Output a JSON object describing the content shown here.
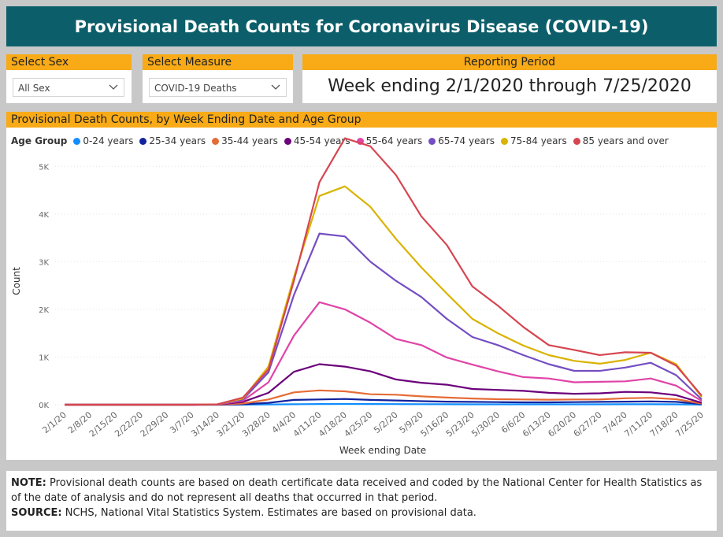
{
  "header": {
    "title": "Provisional Death Counts for Coronavirus Disease (COVID-19)"
  },
  "filters": {
    "sex": {
      "label": "Select Sex",
      "value": "All Sex"
    },
    "measure": {
      "label": "Select Measure",
      "value": "COVID-19 Deaths"
    },
    "period": {
      "label": "Reporting Period",
      "value": "Week ending 2/1/2020 through 7/25/2020"
    }
  },
  "chart": {
    "heading": "Provisional Death Counts, by Week Ending Date and Age Group",
    "legend_title": "Age Group"
  },
  "colors": {
    "accent": "#f8aa17",
    "title_bg": "#0c5f6a"
  },
  "chart_data": {
    "type": "line",
    "title": "Provisional Death Counts, by Week Ending Date and Age Group",
    "xlabel": "Week ending Date",
    "ylabel": "Count",
    "ylim": [
      0,
      5500
    ],
    "yticks": [
      0,
      1000,
      2000,
      3000,
      4000,
      5000
    ],
    "ytick_labels": [
      "0K",
      "1K",
      "2K",
      "3K",
      "4K",
      "5K"
    ],
    "grid": true,
    "legend_position": "top",
    "x": [
      "2/1/20",
      "2/8/20",
      "2/15/20",
      "2/22/20",
      "2/29/20",
      "3/7/20",
      "3/14/20",
      "3/21/20",
      "3/28/20",
      "4/4/20",
      "4/11/20",
      "4/18/20",
      "4/25/20",
      "5/2/20",
      "5/9/20",
      "5/16/20",
      "5/23/20",
      "5/30/20",
      "6/6/20",
      "6/13/20",
      "6/20/20",
      "6/27/20",
      "7/4/20",
      "7/11/20",
      "7/18/20",
      "7/25/20"
    ],
    "series": [
      {
        "name": "0-24 years",
        "color": "#118dff",
        "values": [
          0,
          0,
          0,
          0,
          0,
          0,
          0,
          2,
          5,
          10,
          15,
          16,
          15,
          14,
          12,
          10,
          9,
          8,
          8,
          8,
          8,
          9,
          10,
          10,
          8,
          2
        ]
      },
      {
        "name": "25-34 years",
        "color": "#12239e",
        "values": [
          0,
          0,
          0,
          0,
          0,
          0,
          0,
          10,
          40,
          100,
          110,
          120,
          100,
          90,
          75,
          65,
          60,
          55,
          50,
          50,
          55,
          60,
          65,
          70,
          60,
          15
        ]
      },
      {
        "name": "35-44 years",
        "color": "#e66c37",
        "values": [
          0,
          0,
          0,
          0,
          0,
          0,
          2,
          25,
          110,
          260,
          300,
          280,
          220,
          210,
          175,
          150,
          130,
          115,
          110,
          105,
          110,
          110,
          135,
          145,
          115,
          25
        ]
      },
      {
        "name": "45-54 years",
        "color": "#6b007b",
        "values": [
          0,
          0,
          0,
          0,
          0,
          0,
          3,
          60,
          250,
          690,
          850,
          800,
          700,
          530,
          460,
          420,
          330,
          310,
          290,
          250,
          230,
          240,
          270,
          260,
          200,
          40
        ]
      },
      {
        "name": "55-64 years",
        "color": "#e044a7",
        "values": [
          0,
          0,
          0,
          0,
          0,
          0,
          5,
          85,
          470,
          1450,
          2150,
          2000,
          1720,
          1380,
          1250,
          990,
          840,
          700,
          580,
          550,
          470,
          480,
          490,
          550,
          400,
          80
        ]
      },
      {
        "name": "65-74 years",
        "color": "#744ec2",
        "values": [
          0,
          0,
          0,
          0,
          0,
          0,
          8,
          110,
          680,
          2300,
          3590,
          3530,
          3000,
          2600,
          2260,
          1800,
          1420,
          1250,
          1040,
          850,
          710,
          710,
          780,
          880,
          620,
          110
        ]
      },
      {
        "name": "75-84 years",
        "color": "#d9b300",
        "values": [
          0,
          0,
          0,
          0,
          0,
          0,
          8,
          130,
          800,
          2680,
          4380,
          4580,
          4150,
          3480,
          2880,
          2330,
          1800,
          1500,
          1240,
          1040,
          920,
          860,
          940,
          1090,
          850,
          160
        ]
      },
      {
        "name": "85 years and over",
        "color": "#d64550",
        "values": [
          0,
          0,
          0,
          0,
          0,
          0,
          8,
          150,
          740,
          2600,
          4670,
          5590,
          5420,
          4820,
          3950,
          3350,
          2480,
          2080,
          1630,
          1250,
          1150,
          1040,
          1100,
          1090,
          820,
          190
        ]
      }
    ]
  },
  "note": {
    "note_label": "NOTE:",
    "note_text": " Provisional death counts are based on death certificate data received and coded by the National Center for Health Statistics as of the date of analysis and do not represent all deaths that occurred in that period.",
    "source_label": "SOURCE:",
    "source_text": " NCHS, National Vital Statistics System. Estimates are based on provisional data."
  }
}
